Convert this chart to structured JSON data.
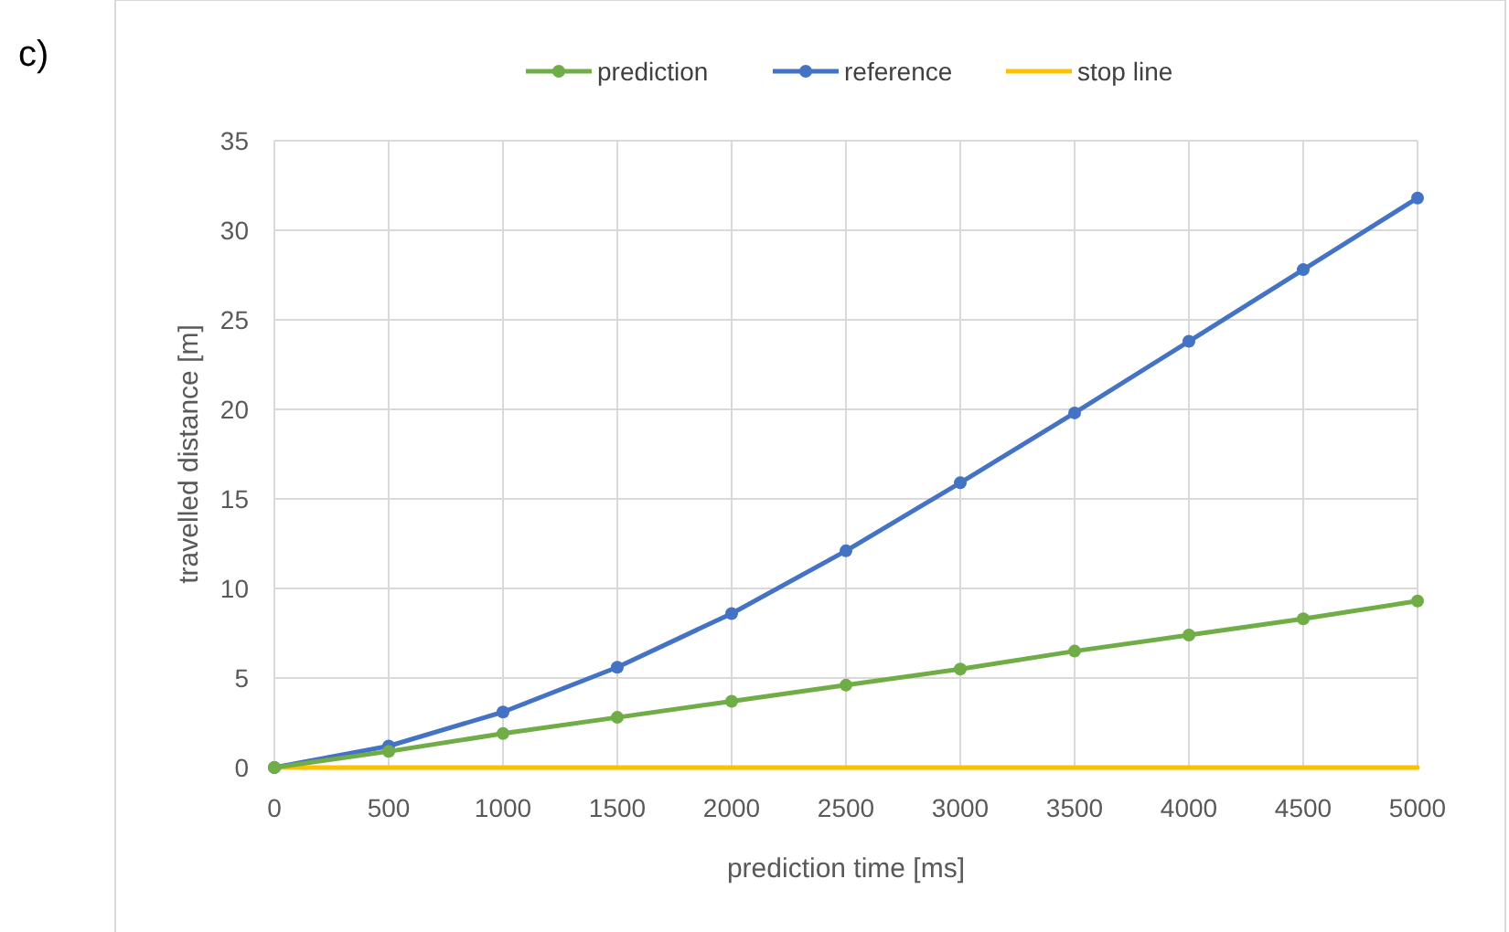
{
  "chart_data": {
    "type": "line",
    "xlabel": "prediction time [ms]",
    "ylabel": "travelled distance [m]",
    "annotations": [
      "c)"
    ],
    "x": [
      0,
      500,
      1000,
      1500,
      2000,
      2500,
      3000,
      3500,
      4000,
      4500,
      5000
    ],
    "xlim": [
      0,
      5000
    ],
    "xticks": [
      0,
      500,
      1000,
      1500,
      2000,
      2500,
      3000,
      3500,
      4000,
      4500,
      5000
    ],
    "ylim": [
      0,
      35
    ],
    "yticks": [
      0,
      5,
      10,
      15,
      20,
      25,
      30,
      35
    ],
    "grid": true,
    "legend": "top",
    "series": [
      {
        "name": "prediction",
        "color": "#70ad47",
        "marker": "circle",
        "values": [
          0,
          0.9,
          1.9,
          2.8,
          3.7,
          4.6,
          5.5,
          6.5,
          7.4,
          8.3,
          9.3
        ]
      },
      {
        "name": "reference",
        "color": "#4472c4",
        "marker": "circle",
        "values": [
          0,
          1.2,
          3.1,
          5.6,
          8.6,
          12.1,
          15.9,
          19.8,
          23.8,
          27.8,
          31.8
        ]
      },
      {
        "name": "stop line",
        "color": "#ffc000",
        "marker": "none",
        "values": [
          0,
          0,
          0,
          0,
          0,
          0,
          0,
          0,
          0,
          0,
          0
        ]
      }
    ]
  }
}
